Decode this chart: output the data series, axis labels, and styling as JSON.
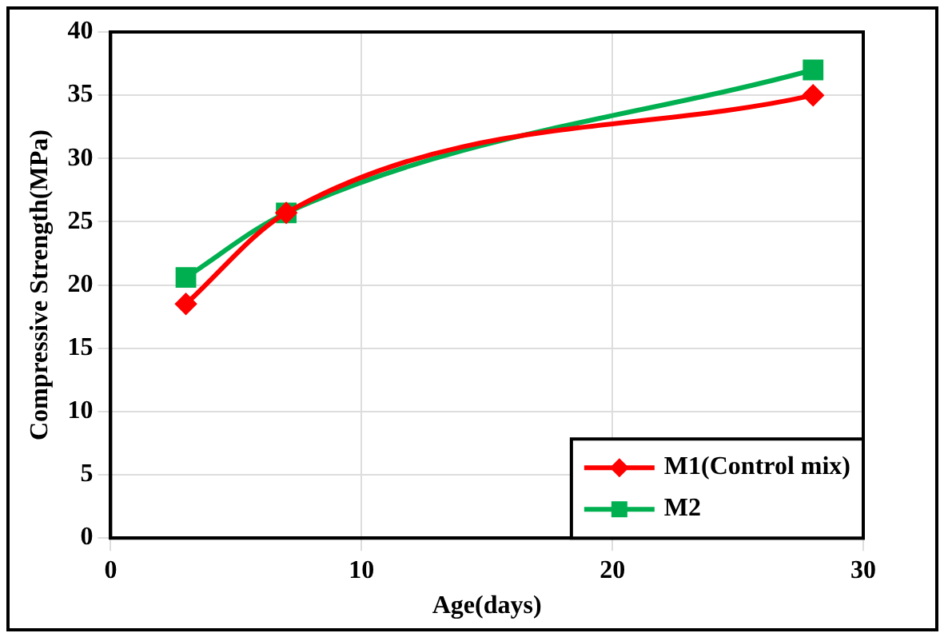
{
  "chart_data": {
    "type": "line",
    "xlabel": "Age(days)",
    "ylabel": "Compressive Strength(MPa)",
    "xlim": [
      0,
      30
    ],
    "xticks": [
      0,
      10,
      20,
      30
    ],
    "ylim": [
      0,
      40
    ],
    "yticks": [
      0,
      5,
      10,
      15,
      20,
      25,
      30,
      35,
      40
    ],
    "grid": true,
    "legend": "bottom right",
    "series": [
      {
        "name": "M1(Control mix)",
        "color": "#ff0000",
        "marker": "diamond",
        "x": [
          3,
          7,
          28
        ],
        "values": [
          18.5,
          25.7,
          35
        ]
      },
      {
        "name": "M2",
        "color": "#00b050",
        "marker": "square",
        "x": [
          3,
          7,
          28
        ],
        "values": [
          20.6,
          25.7,
          37
        ]
      }
    ]
  }
}
